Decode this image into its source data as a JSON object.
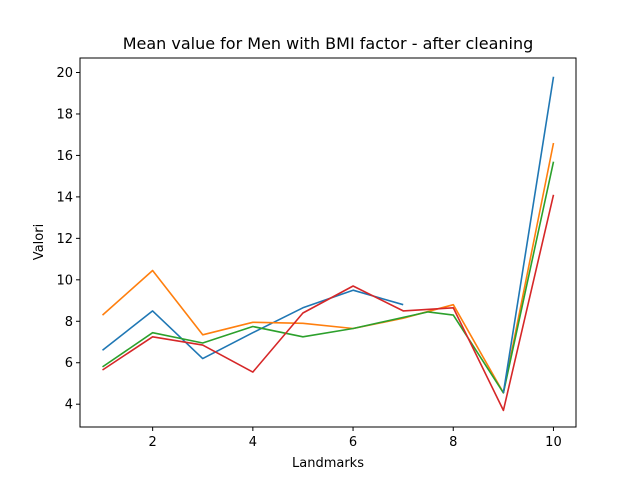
{
  "chart_data": {
    "type": "line",
    "title": "Mean value for Men with BMI factor - after cleaning",
    "xlabel": "Landmarks",
    "ylabel": "Valori",
    "xlim": [
      0.55,
      10.45
    ],
    "ylim": [
      2.9,
      20.7
    ],
    "xticks": [
      2,
      4,
      6,
      8,
      10
    ],
    "yticks": [
      4,
      6,
      8,
      10,
      12,
      14,
      16,
      18,
      20
    ],
    "grid": false,
    "series": [
      {
        "color": "#1f77b4",
        "points": [
          [
            1,
            6.6
          ],
          [
            2,
            8.5
          ],
          [
            3,
            6.2
          ],
          [
            4,
            7.45
          ],
          [
            5,
            8.65
          ],
          [
            6,
            9.5
          ],
          [
            7,
            8.8
          ]
        ]
      },
      {
        "color": "#ff7f0e",
        "points": [
          [
            1,
            8.3
          ],
          [
            2,
            10.45
          ],
          [
            3,
            7.35
          ],
          [
            4,
            7.95
          ],
          [
            5,
            7.9
          ],
          [
            6,
            7.65
          ],
          [
            7,
            8.15
          ],
          [
            8,
            8.8
          ],
          [
            9,
            4.55
          ],
          [
            10,
            16.6
          ]
        ]
      },
      {
        "color": "#2ca02c",
        "points": [
          [
            1,
            5.8
          ],
          [
            2,
            7.45
          ],
          [
            3,
            6.95
          ],
          [
            4,
            7.75
          ],
          [
            5,
            7.25
          ],
          [
            6,
            7.65
          ],
          [
            7.5,
            8.45
          ],
          [
            8,
            8.3
          ],
          [
            9,
            4.55
          ],
          [
            10,
            15.7
          ]
        ]
      },
      {
        "color": "#d62728",
        "points": [
          [
            1,
            5.65
          ],
          [
            2,
            7.25
          ],
          [
            3,
            6.85
          ],
          [
            4,
            5.55
          ],
          [
            5,
            8.4
          ],
          [
            6,
            9.7
          ],
          [
            7,
            8.5
          ],
          [
            8,
            8.65
          ],
          [
            9,
            3.7
          ],
          [
            10,
            14.1
          ]
        ]
      },
      {
        "color": "#1f77b4",
        "points": [
          [
            9,
            4.55
          ],
          [
            10,
            19.8
          ]
        ]
      }
    ]
  }
}
